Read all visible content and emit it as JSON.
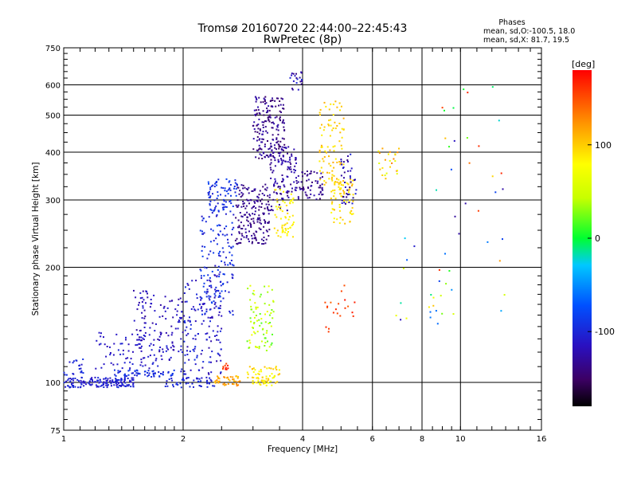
{
  "chart_data": {
    "type": "scatter",
    "title": "Tromsø 20160720 22:44:00–22:45:43",
    "subtitle": "RwPretec (8p)",
    "xlabel": "Frequency [MHz]",
    "ylabel": "Stationary phase Virtual Height [km]",
    "x_scale": "log",
    "y_scale": "log",
    "xlim": [
      1,
      16
    ],
    "ylim": [
      75,
      750
    ],
    "x_ticks": [
      1,
      2,
      4,
      6,
      8,
      10,
      16
    ],
    "x_tick_labels": [
      "1",
      "2",
      "4",
      "6",
      "8",
      "10",
      "16"
    ],
    "y_ticks": [
      75,
      100,
      200,
      300,
      400,
      500,
      600,
      750
    ],
    "y_tick_labels": [
      "75",
      "100",
      "200",
      "300",
      "400",
      "500",
      "600",
      "750"
    ],
    "grid": true,
    "info": {
      "heading": "Phases",
      "line1": "mean, sd,O:-100.5, 18.0",
      "line2": "mean, sd,X:  81.7, 19.5"
    },
    "colorbar": {
      "unit": "[deg]",
      "range": [
        -180,
        180
      ],
      "ticks": [
        100,
        0,
        -100
      ],
      "tick_labels": [
        "100",
        "0",
        "-100"
      ]
    },
    "clusters": [
      {
        "f": [
          1.0,
          1.5
        ],
        "h": [
          97,
          103
        ],
        "phase": [
          -115,
          -95
        ],
        "n": 160
      },
      {
        "f": [
          1.0,
          1.12
        ],
        "h": [
          104,
          115
        ],
        "phase": [
          -110,
          -90
        ],
        "n": 20
      },
      {
        "f": [
          1.3,
          1.9
        ],
        "h": [
          103,
          108
        ],
        "phase": [
          -105,
          -85
        ],
        "n": 60
      },
      {
        "f": [
          1.2,
          1.9
        ],
        "h": [
          108,
          135
        ],
        "phase": [
          -120,
          -100
        ],
        "n": 90
      },
      {
        "f": [
          1.5,
          1.95
        ],
        "h": [
          120,
          175
        ],
        "phase": [
          -130,
          -105
        ],
        "n": 90
      },
      {
        "f": [
          1.8,
          2.4
        ],
        "h": [
          97,
          103
        ],
        "phase": [
          -110,
          -90
        ],
        "n": 50
      },
      {
        "f": [
          1.95,
          2.5
        ],
        "h": [
          105,
          185
        ],
        "phase": [
          -125,
          -90
        ],
        "n": 160
      },
      {
        "f": [
          2.2,
          2.7
        ],
        "h": [
          150,
          280
        ],
        "phase": [
          -115,
          -80
        ],
        "n": 140
      },
      {
        "f": [
          2.3,
          2.75
        ],
        "h": [
          280,
          340
        ],
        "phase": [
          -105,
          -80
        ],
        "n": 80
      },
      {
        "f": [
          2.4,
          2.8
        ],
        "h": [
          98,
          104
        ],
        "phase": [
          100,
          130
        ],
        "n": 40
      },
      {
        "f": [
          2.5,
          2.6
        ],
        "h": [
          108,
          112
        ],
        "phase": [
          150,
          175
        ],
        "n": 10
      },
      {
        "f": [
          2.7,
          3.3
        ],
        "h": [
          230,
          330
        ],
        "phase": [
          -145,
          -125
        ],
        "n": 180
      },
      {
        "f": [
          2.9,
          3.4
        ],
        "h": [
          120,
          180
        ],
        "phase": [
          15,
          75
        ],
        "n": 80
      },
      {
        "f": [
          2.9,
          3.5
        ],
        "h": [
          98,
          110
        ],
        "phase": [
          70,
          110
        ],
        "n": 70
      },
      {
        "f": [
          3.0,
          3.6
        ],
        "h": [
          380,
          560
        ],
        "phase": [
          -150,
          -120
        ],
        "n": 180
      },
      {
        "f": [
          3.3,
          3.9
        ],
        "h": [
          280,
          420
        ],
        "phase": [
          -140,
          -115
        ],
        "n": 120
      },
      {
        "f": [
          3.4,
          3.8
        ],
        "h": [
          240,
          320
        ],
        "phase": [
          70,
          100
        ],
        "n": 60
      },
      {
        "f": [
          3.7,
          4.0
        ],
        "h": [
          580,
          650
        ],
        "phase": [
          -140,
          -100
        ],
        "n": 20
      },
      {
        "f": [
          3.9,
          4.5
        ],
        "h": [
          300,
          360
        ],
        "phase": [
          -145,
          -120
        ],
        "n": 60
      },
      {
        "f": [
          4.4,
          5.1
        ],
        "h": [
          320,
          550
        ],
        "phase": [
          85,
          115
        ],
        "n": 90
      },
      {
        "f": [
          4.7,
          5.4
        ],
        "h": [
          260,
          340
        ],
        "phase": [
          80,
          110
        ],
        "n": 70
      },
      {
        "f": [
          5.0,
          5.5
        ],
        "h": [
          290,
          400
        ],
        "phase": [
          -140,
          -100
        ],
        "n": 40
      },
      {
        "f": [
          4.5,
          5.5
        ],
        "h": [
          130,
          180
        ],
        "phase": [
          140,
          175
        ],
        "n": 20
      },
      {
        "f": [
          6.2,
          7.0
        ],
        "h": [
          340,
          410
        ],
        "phase": [
          60,
          150
        ],
        "n": 25
      },
      {
        "f": [
          6.5,
          9.0
        ],
        "h": [
          140,
          250
        ],
        "phase": [
          -120,
          120
        ],
        "n": 18
      },
      {
        "f": [
          8.5,
          13.0
        ],
        "h": [
          150,
          620
        ],
        "phase": [
          -130,
          170
        ],
        "n": 35
      }
    ]
  }
}
